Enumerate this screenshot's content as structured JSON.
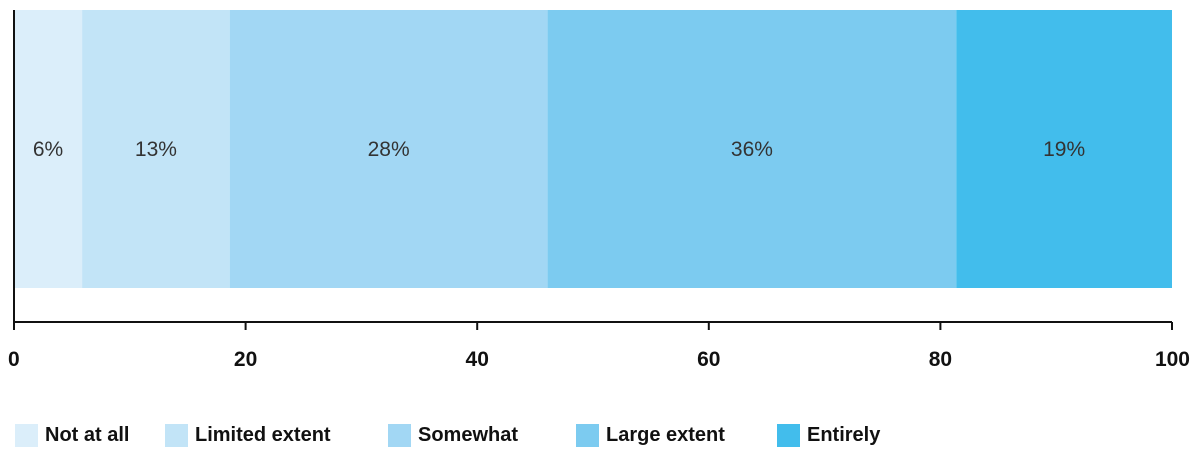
{
  "chart_data": {
    "type": "bar",
    "orientation": "horizontal",
    "stacked": true,
    "categories": [
      ""
    ],
    "series": [
      {
        "name": "Not at all",
        "values": [
          6
        ],
        "label": "6%",
        "color": "#dbeefa"
      },
      {
        "name": "Limited extent",
        "values": [
          13
        ],
        "label": "13%",
        "color": "#c2e4f7"
      },
      {
        "name": "Somewhat",
        "values": [
          28
        ],
        "label": "28%",
        "color": "#a2d7f4"
      },
      {
        "name": "Large extent",
        "values": [
          36
        ],
        "label": "36%",
        "color": "#7ccbf0"
      },
      {
        "name": "Entirely",
        "values": [
          19
        ],
        "label": "19%",
        "color": "#42bdec"
      }
    ],
    "xlim": [
      0,
      100
    ],
    "xticks": [
      0,
      20,
      40,
      60,
      80,
      100
    ],
    "xtick_labels": [
      "0",
      "20",
      "40",
      "60",
      "80",
      "100"
    ],
    "grid": false,
    "legend_position": "bottom"
  }
}
